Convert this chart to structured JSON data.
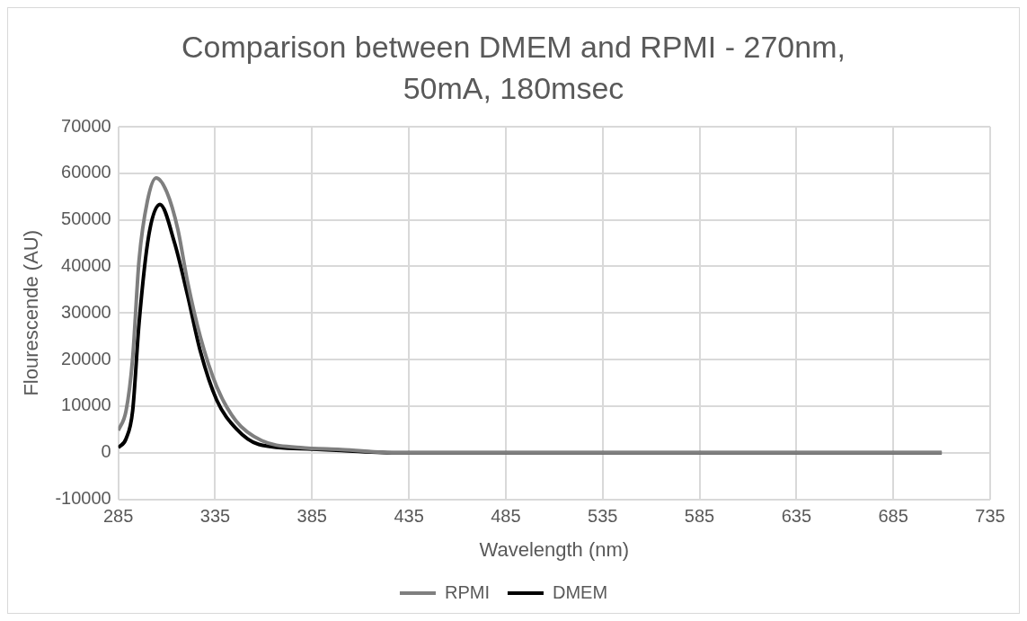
{
  "chart_data": {
    "type": "line",
    "title": "Comparison between DMEM and RPMI - 270nm, 50mA, 180msec",
    "xlabel": "Wavelength (nm)",
    "ylabel": "Flourescende (AU)",
    "xlim": [
      285,
      735
    ],
    "xticks": [
      285,
      335,
      385,
      435,
      485,
      535,
      585,
      635,
      685,
      735
    ],
    "ylim": [
      -10000,
      70000
    ],
    "yticks": [
      -10000,
      0,
      10000,
      20000,
      30000,
      40000,
      50000,
      60000,
      70000
    ],
    "grid": true,
    "legend": "bottom",
    "marker": "none",
    "line_style": "solid",
    "series": [
      {
        "name": "RPMI",
        "color": "#7f7f7f",
        "x": [
          285,
          289,
          292.4,
          295.7,
          300,
          304.5,
          310,
          315.7,
          320.7,
          327.4,
          335.8,
          345.8,
          359,
          379,
          400,
          430,
          500,
          600,
          710
        ],
        "values": [
          4800,
          9000,
          20300,
          41300,
          54000,
          59000,
          56000,
          48000,
          36800,
          24800,
          14200,
          6800,
          2600,
          1100,
          700,
          0,
          0,
          0,
          0
        ]
      },
      {
        "name": "DMEM",
        "color": "#000000",
        "x": [
          285,
          289,
          292.4,
          295.7,
          300.7,
          306.5,
          314,
          320.7,
          327.4,
          335.8,
          345.8,
          357.5,
          385,
          400,
          430,
          500,
          600,
          710
        ],
        "values": [
          1100,
          3000,
          9000,
          27800,
          46600,
          53300,
          45100,
          33900,
          21700,
          11300,
          5200,
          1800,
          800,
          500,
          0,
          0,
          0,
          0
        ]
      }
    ]
  }
}
